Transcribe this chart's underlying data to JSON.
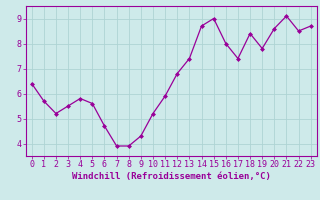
{
  "x": [
    0,
    1,
    2,
    3,
    4,
    5,
    6,
    7,
    8,
    9,
    10,
    11,
    12,
    13,
    14,
    15,
    16,
    17,
    18,
    19,
    20,
    21,
    22,
    23
  ],
  "y": [
    6.4,
    5.7,
    5.2,
    5.5,
    5.8,
    5.6,
    4.7,
    3.9,
    3.9,
    4.3,
    5.2,
    5.9,
    6.8,
    7.4,
    8.7,
    9.0,
    8.0,
    7.4,
    8.4,
    7.8,
    8.6,
    9.1,
    8.5,
    8.7
  ],
  "line_color": "#990099",
  "marker": "D",
  "marker_size": 2.0,
  "line_width": 0.9,
  "bg_color": "#ceeaea",
  "grid_color": "#aed4d4",
  "axis_label_color": "#990099",
  "tick_color": "#990099",
  "xlabel": "Windchill (Refroidissement éolien,°C)",
  "xlabel_fontsize": 6.5,
  "ylim": [
    3.5,
    9.5
  ],
  "yticks": [
    4,
    5,
    6,
    7,
    8,
    9
  ],
  "xticks": [
    0,
    1,
    2,
    3,
    4,
    5,
    6,
    7,
    8,
    9,
    10,
    11,
    12,
    13,
    14,
    15,
    16,
    17,
    18,
    19,
    20,
    21,
    22,
    23
  ],
  "tick_fontsize": 6.0,
  "spine_color": "#990099"
}
